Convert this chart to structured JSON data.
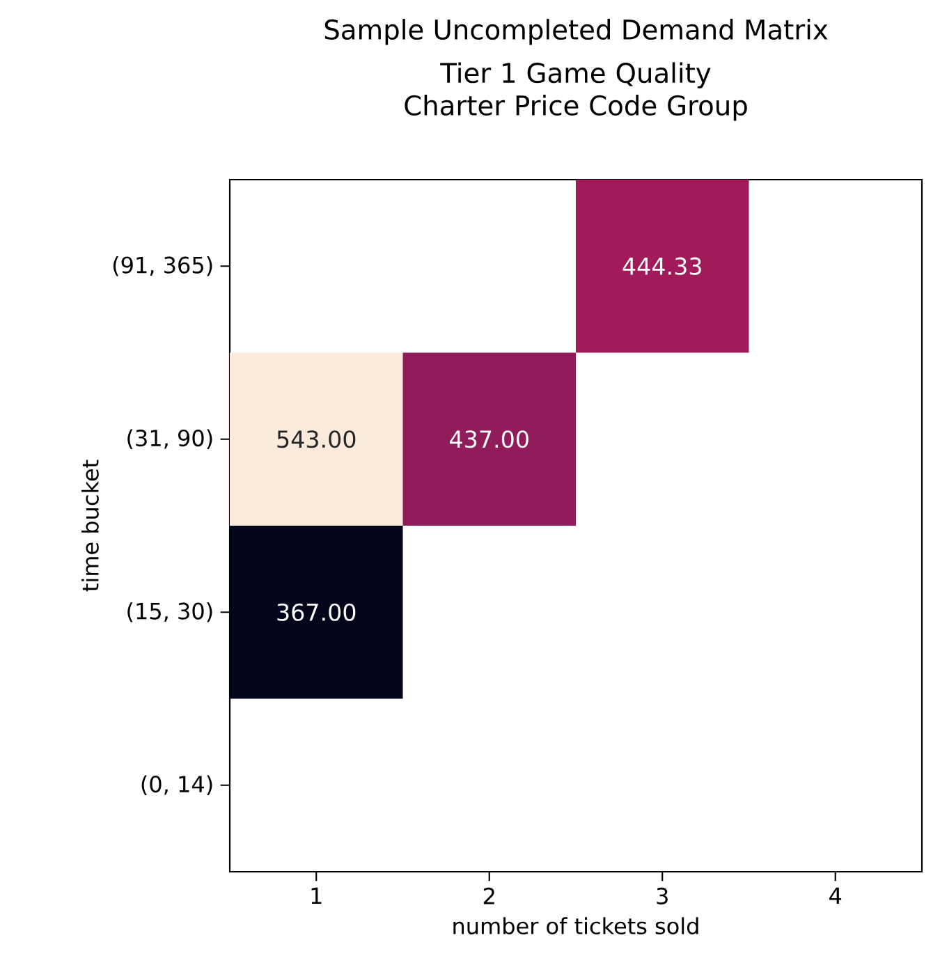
{
  "chart_data": {
    "type": "heatmap",
    "title": "Sample Uncompleted Demand Matrix",
    "subtitle": "Tier 1 Game Quality Charter Price Code Group",
    "xlabel": "number of tickets sold",
    "ylabel": "time bucket",
    "categories": [
      "1",
      "2",
      "3",
      "4"
    ],
    "y_categories": [
      "(91, 365)",
      "(31, 90)",
      "(15, 30)",
      "(0, 14)"
    ],
    "cells": [
      [
        null,
        null,
        444.33,
        null
      ],
      [
        543,
        437,
        null,
        null
      ],
      [
        367,
        null,
        null,
        null
      ],
      [
        null,
        null,
        null,
        null
      ]
    ],
    "cell_labels": [
      [
        null,
        null,
        "444.33",
        null
      ],
      [
        "543.00",
        "437.00",
        null,
        null
      ],
      [
        "367.00",
        null,
        null,
        null
      ],
      [
        null,
        null,
        null,
        null
      ]
    ]
  }
}
